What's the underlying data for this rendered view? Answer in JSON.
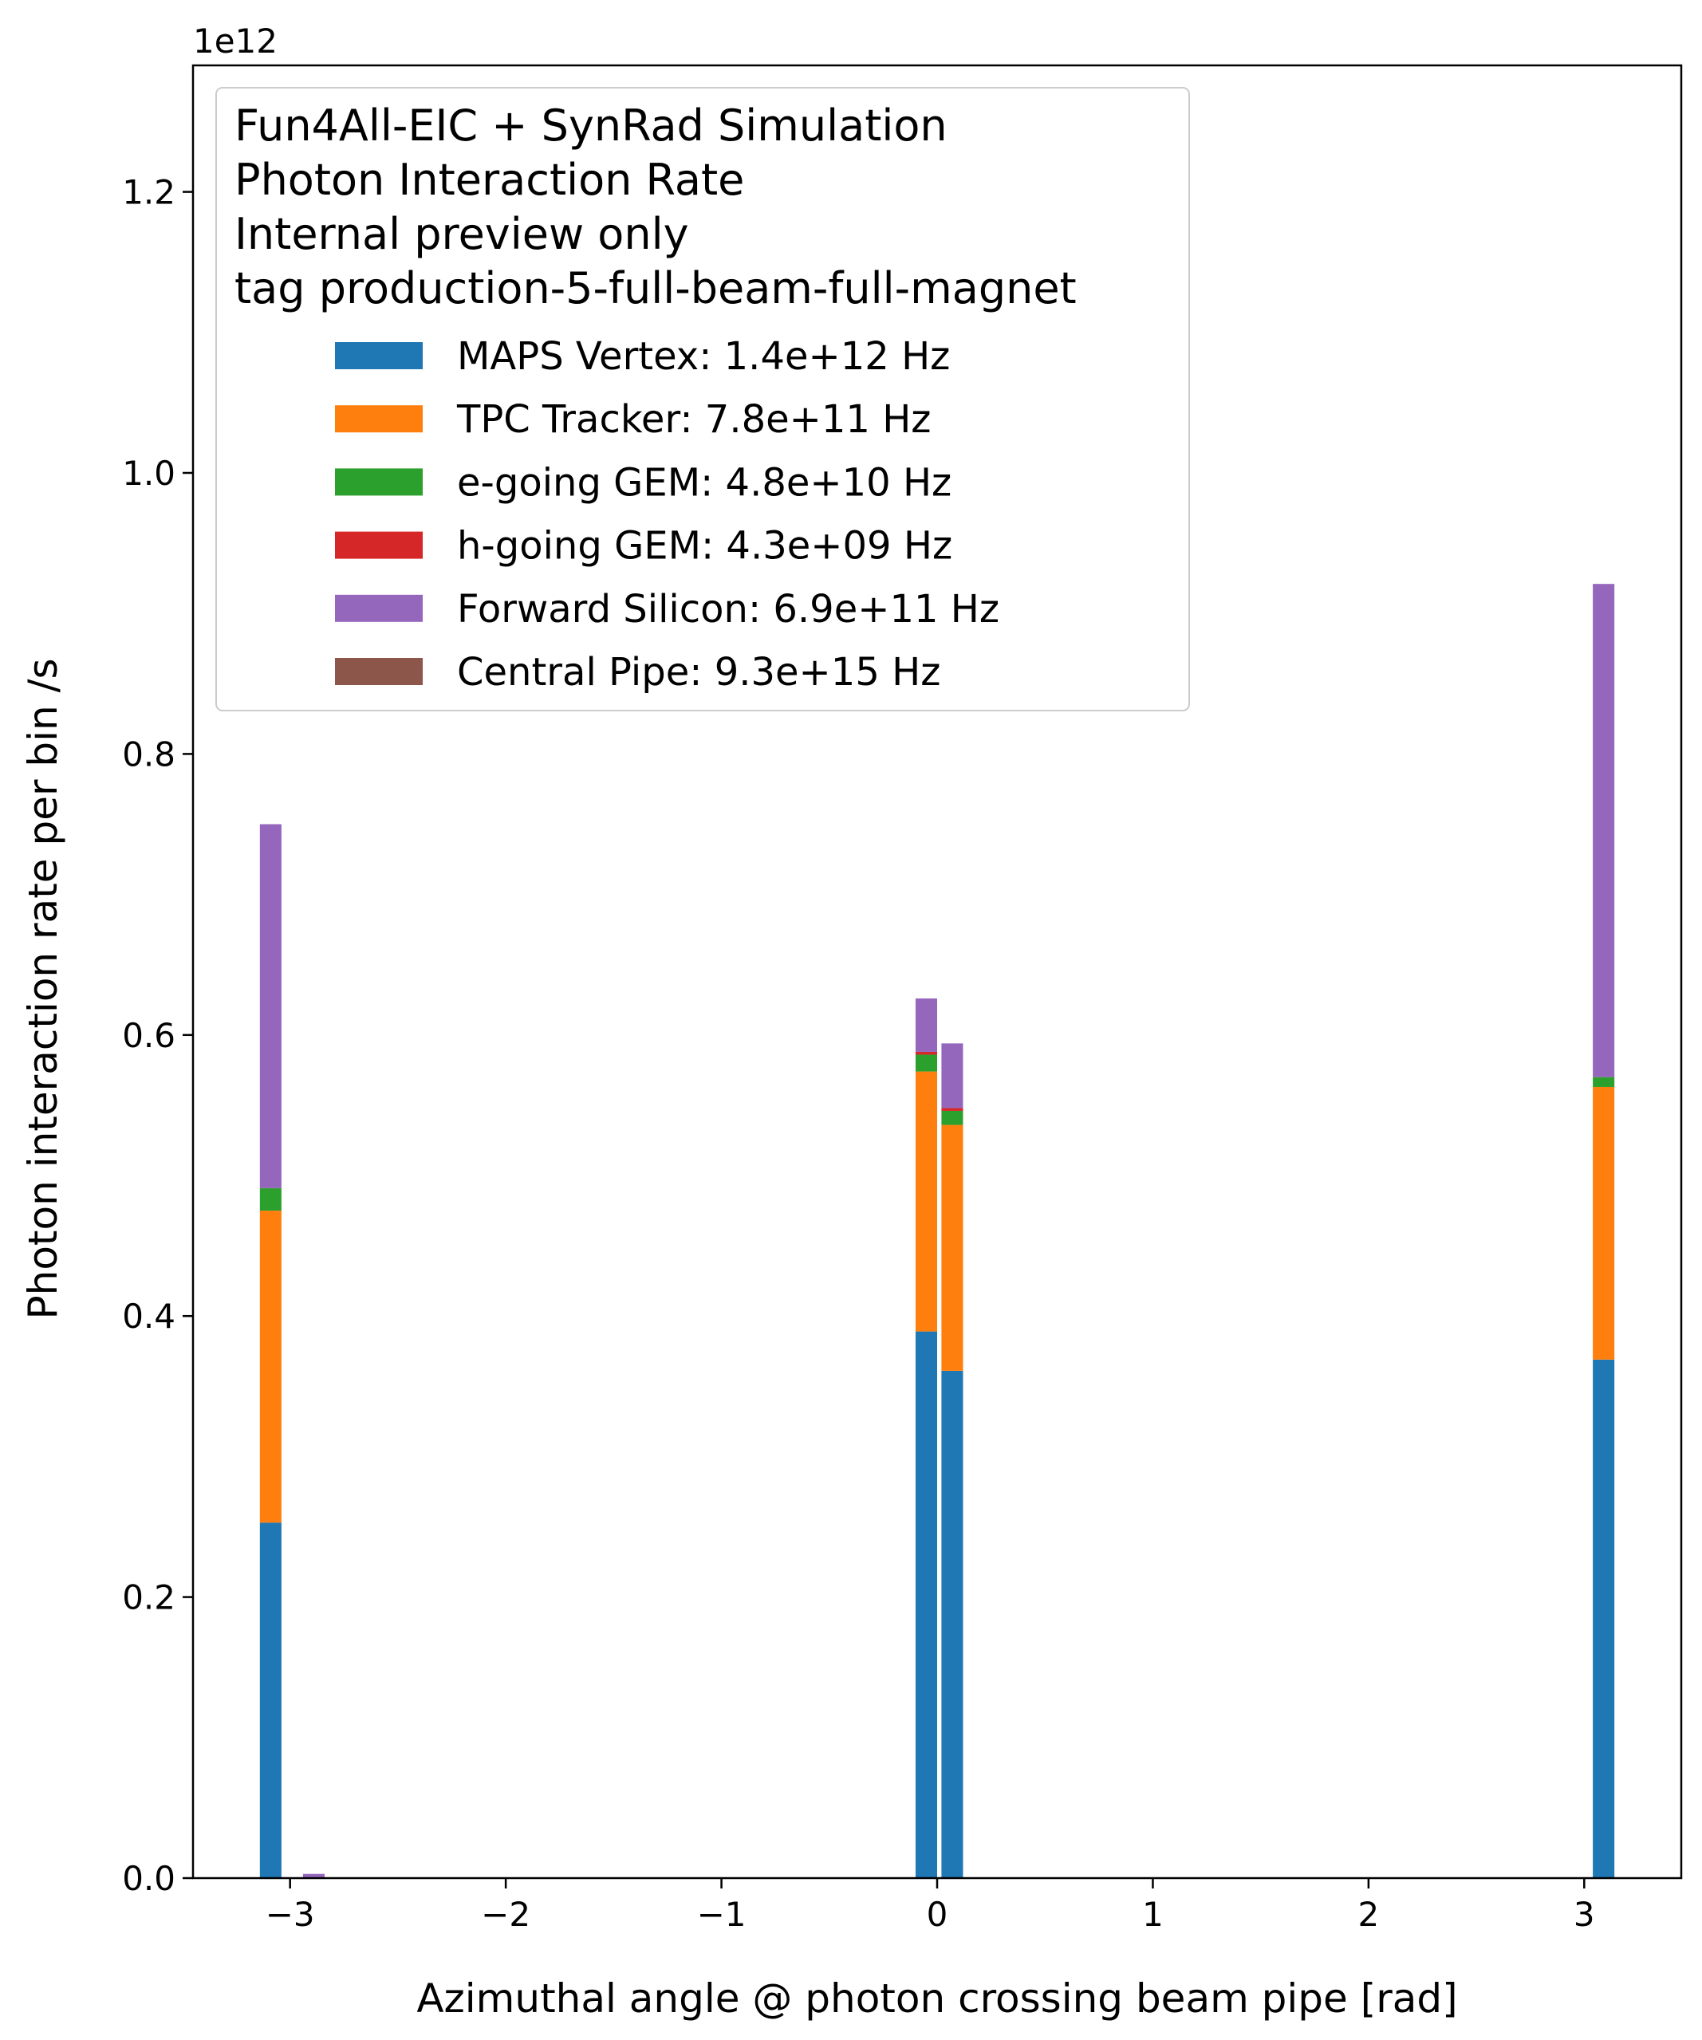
{
  "chart_data": {
    "type": "bar",
    "stacked": true,
    "multiplier_label": "1e12",
    "xlabel": "Azimuthal angle @ photon crossing beam pipe [rad]",
    "ylabel": "Photon interaction rate per bin /s",
    "xlim": [
      -3.45,
      3.45
    ],
    "ylim": [
      0,
      1.29
    ],
    "bin_width": 0.1,
    "x_ticks": [
      {
        "value": -3,
        "label": "−3"
      },
      {
        "value": -2,
        "label": "−2"
      },
      {
        "value": -1,
        "label": "−1"
      },
      {
        "value": 0,
        "label": "0"
      },
      {
        "value": 1,
        "label": "1"
      },
      {
        "value": 2,
        "label": "2"
      },
      {
        "value": 3,
        "label": "3"
      }
    ],
    "y_ticks": [
      {
        "value": 0.0,
        "label": "0.0"
      },
      {
        "value": 0.2,
        "label": "0.2"
      },
      {
        "value": 0.4,
        "label": "0.4"
      },
      {
        "value": 0.6,
        "label": "0.6"
      },
      {
        "value": 0.8,
        "label": "0.8"
      },
      {
        "value": 1.0,
        "label": "1.0"
      },
      {
        "value": 1.2,
        "label": "1.2"
      }
    ],
    "legend": {
      "placement": "top-left",
      "title_lines": [
        "Fun4All-EIC + SynRad Simulation",
        "Photon Interaction Rate",
        "Internal preview only",
        "tag production-5-full-beam-full-magnet"
      ]
    },
    "bin_centers": [
      -3.09,
      -2.89,
      -0.05,
      0.07,
      3.09
    ],
    "series": [
      {
        "name": "MAPS Vertex: 1.4e+12 Hz",
        "color": "#1f77b4",
        "values": [
          0.253,
          0.0,
          0.389,
          0.361,
          0.369
        ]
      },
      {
        "name": "TPC Tracker: 7.8e+11 Hz",
        "color": "#ff7f0e",
        "values": [
          0.222,
          0.0,
          0.185,
          0.175,
          0.194
        ]
      },
      {
        "name": "e-going GEM: 4.8e+10 Hz",
        "color": "#2ca02c",
        "values": [
          0.016,
          0.0,
          0.012,
          0.01,
          0.007
        ]
      },
      {
        "name": "h-going GEM: 4.3e+09 Hz",
        "color": "#d62728",
        "values": [
          0.0,
          0.0,
          0.002,
          0.002,
          0.0
        ]
      },
      {
        "name": "Forward Silicon: 6.9e+11 Hz",
        "color": "#9467bd",
        "values": [
          0.259,
          0.003,
          0.038,
          0.046,
          0.351
        ]
      },
      {
        "name": "Central Pipe: 9.3e+15 Hz",
        "color": "#8c564b",
        "values": [
          0.0,
          0.0,
          0.0,
          0.0,
          0.0
        ]
      }
    ]
  }
}
